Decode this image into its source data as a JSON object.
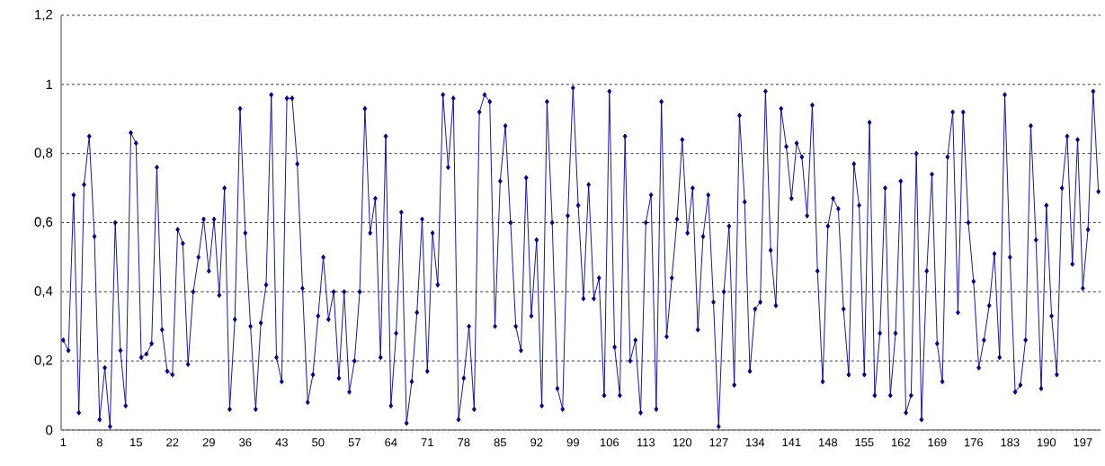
{
  "chart_data": {
    "type": "line",
    "categories": [
      "1",
      null,
      null,
      null,
      null,
      null,
      null,
      "8",
      null,
      null,
      null,
      null,
      null,
      null,
      "15",
      null,
      null,
      null,
      null,
      null,
      null,
      "22",
      null,
      null,
      null,
      null,
      null,
      null,
      "29",
      null,
      null,
      null,
      null,
      null,
      null,
      "36",
      null,
      null,
      null,
      null,
      null,
      null,
      "43",
      null,
      null,
      null,
      null,
      null,
      null,
      "50",
      null,
      null,
      null,
      null,
      null,
      null,
      "57",
      null,
      null,
      null,
      null,
      null,
      null,
      "64",
      null,
      null,
      null,
      null,
      null,
      null,
      "71",
      null,
      null,
      null,
      null,
      null,
      null,
      "78",
      null,
      null,
      null,
      null,
      null,
      null,
      "85",
      null,
      null,
      null,
      null,
      null,
      null,
      "92",
      null,
      null,
      null,
      null,
      null,
      null,
      "99",
      null,
      null,
      null,
      null,
      null,
      null,
      "106",
      null,
      null,
      null,
      null,
      null,
      null,
      "113",
      null,
      null,
      null,
      null,
      null,
      null,
      "120",
      null,
      null,
      null,
      null,
      null,
      null,
      "127",
      null,
      null,
      null,
      null,
      null,
      null,
      "134",
      null,
      null,
      null,
      null,
      null,
      null,
      "141",
      null,
      null,
      null,
      null,
      null,
      null,
      "148",
      null,
      null,
      null,
      null,
      null,
      null,
      "155",
      null,
      null,
      null,
      null,
      null,
      null,
      "162",
      null,
      null,
      null,
      null,
      null,
      null,
      "169",
      null,
      null,
      null,
      null,
      null,
      null,
      "176",
      null,
      null,
      null,
      null,
      null,
      null,
      "183",
      null,
      null,
      null,
      null,
      null,
      null,
      "190",
      null,
      null,
      null,
      null,
      null,
      null,
      "197",
      null,
      null,
      null
    ],
    "series": [
      {
        "color": "#000080",
        "values": [
          0.26,
          0.23,
          0.68,
          0.05,
          0.71,
          0.85,
          0.56,
          0.03,
          0.18,
          0.01,
          0.6,
          0.23,
          0.07,
          0.86,
          0.83,
          0.21,
          0.22,
          0.25,
          0.76,
          0.29,
          0.17,
          0.16,
          0.58,
          0.54,
          0.19,
          0.4,
          0.5,
          0.61,
          0.46,
          0.61,
          0.39,
          0.7,
          0.06,
          0.32,
          0.93,
          0.57,
          0.3,
          0.06,
          0.31,
          0.42,
          0.97,
          0.21,
          0.14,
          0.96,
          0.96,
          0.77,
          0.41,
          0.08,
          0.16,
          0.33,
          0.5,
          0.32,
          0.4,
          0.15,
          0.4,
          0.11,
          0.2,
          0.4,
          0.93,
          0.57,
          0.67,
          0.21,
          0.85,
          0.07,
          0.28,
          0.63,
          0.02,
          0.14,
          0.34,
          0.61,
          0.17,
          0.57,
          0.42,
          0.97,
          0.76,
          0.96,
          0.03,
          0.15,
          0.3,
          0.06,
          0.92,
          0.97,
          0.95,
          0.3,
          0.72,
          0.88,
          0.6,
          0.3,
          0.23,
          0.73,
          0.33,
          0.55,
          0.07,
          0.95,
          0.6,
          0.12,
          0.06,
          0.62,
          0.99,
          0.65,
          0.38,
          0.71,
          0.38,
          0.44,
          0.1,
          0.98,
          0.24,
          0.1,
          0.85,
          0.2,
          0.26,
          0.05,
          0.6,
          0.68,
          0.06,
          0.95,
          0.27,
          0.44,
          0.61,
          0.84,
          0.57,
          0.7,
          0.29,
          0.56,
          0.68,
          0.37,
          0.01,
          0.4,
          0.59,
          0.13,
          0.91,
          0.66,
          0.17,
          0.35,
          0.37,
          0.98,
          0.52,
          0.36,
          0.93,
          0.82,
          0.67,
          0.83,
          0.79,
          0.62,
          0.94,
          0.46,
          0.14,
          0.59,
          0.67,
          0.64,
          0.35,
          0.16,
          0.77,
          0.65,
          0.16,
          0.89,
          0.1,
          0.28,
          0.7,
          0.1,
          0.28,
          0.72,
          0.05,
          0.1,
          0.8,
          0.03,
          0.46,
          0.74,
          0.25,
          0.14,
          0.79,
          0.92,
          0.34,
          0.92,
          0.6,
          0.43,
          0.18,
          0.26,
          0.36,
          0.51,
          0.21,
          0.97,
          0.5,
          0.11,
          0.13,
          0.26,
          0.88,
          0.55,
          0.12,
          0.65,
          0.33,
          0.16,
          0.7,
          0.85,
          0.48,
          0.84,
          0.41,
          0.58,
          0.98,
          0.69
        ]
      }
    ],
    "ylim": [
      0,
      1.2
    ],
    "yticks": [
      0,
      {
        "value": 0.2,
        "label": "0,2"
      },
      {
        "value": 0.4,
        "label": "0,4"
      },
      {
        "value": 0.6,
        "label": "0,6"
      },
      {
        "value": 0.8,
        "label": "0,8"
      },
      1,
      {
        "value": 1.2,
        "label": "1,2"
      }
    ],
    "grid": "y",
    "marker": "diamond",
    "line_style": "solid"
  }
}
